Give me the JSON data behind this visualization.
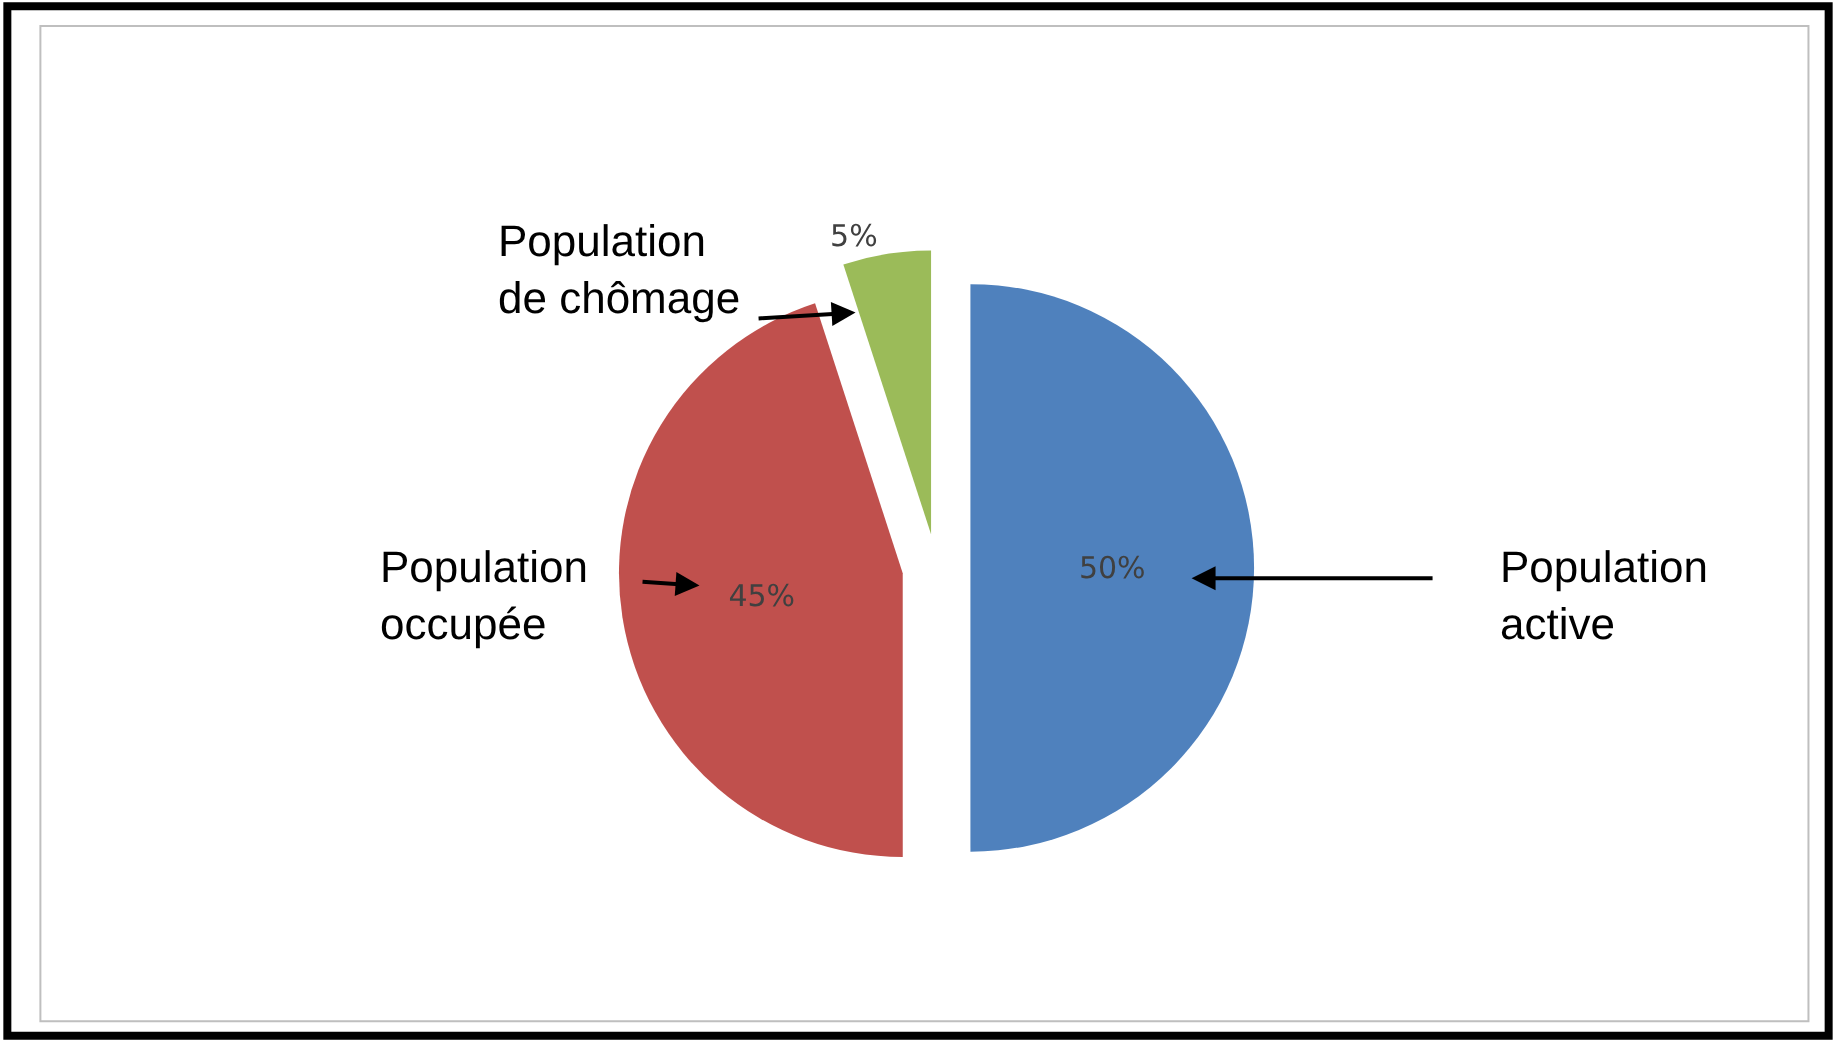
{
  "chart_data": {
    "type": "pie",
    "categories": [
      "Population active",
      "Population occupée",
      "Population de chômage"
    ],
    "values": [
      50,
      45,
      5
    ],
    "colors": [
      "#4f81bd",
      "#c0504d",
      "#9bbb59"
    ],
    "value_labels": [
      "50%",
      "45%",
      "5%"
    ],
    "legend": false
  }
}
